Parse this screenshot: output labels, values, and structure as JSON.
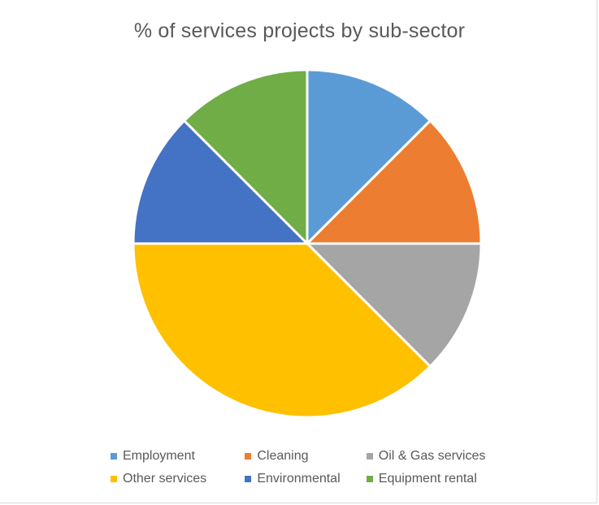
{
  "chart_data": {
    "type": "pie",
    "title": "% of services projects by sub-sector",
    "legend_position": "bottom",
    "slices": [
      {
        "label": "Employment",
        "value": 12.5,
        "color": "#5b9bd5"
      },
      {
        "label": "Cleaning",
        "value": 12.5,
        "color": "#ed7d31"
      },
      {
        "label": "Oil & Gas services",
        "value": 12.5,
        "color": "#a5a5a5"
      },
      {
        "label": "Other services",
        "value": 37.5,
        "color": "#ffc000"
      },
      {
        "label": "Environmental",
        "value": 12.5,
        "color": "#4472c4"
      },
      {
        "label": "Equipment rental",
        "value": 12.5,
        "color": "#70ad47"
      }
    ]
  }
}
